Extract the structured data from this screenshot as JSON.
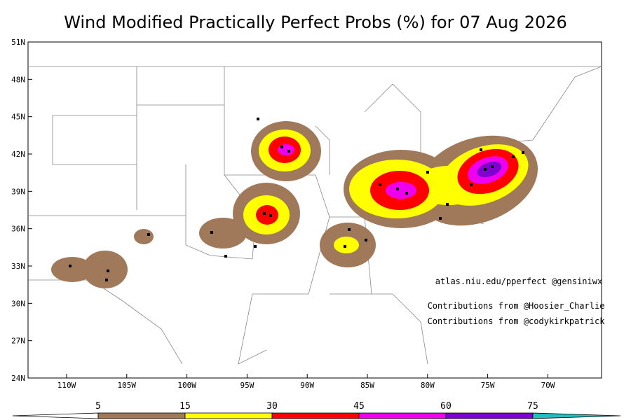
{
  "title": "Wind Modified Practically Perfect Probs (%) for 07 Aug 2026",
  "lat_labels": [
    "51N",
    "48N",
    "45N",
    "42N",
    "39N",
    "36N",
    "33N",
    "30N",
    "27N",
    "24N"
  ],
  "lon_labels": [
    "110W",
    "105W",
    "100W",
    "95W",
    "90W",
    "85W",
    "80W",
    "75W",
    "70W"
  ],
  "credits": [
    "atlas.niu.edu/pperfect @gensiniwx",
    "Contributions from @Hoosier_Charlie",
    "Contributions from @codykirkpatrick"
  ],
  "colorbar_labels": [
    "5",
    "15",
    "30",
    "45",
    "60",
    "75"
  ]
}
